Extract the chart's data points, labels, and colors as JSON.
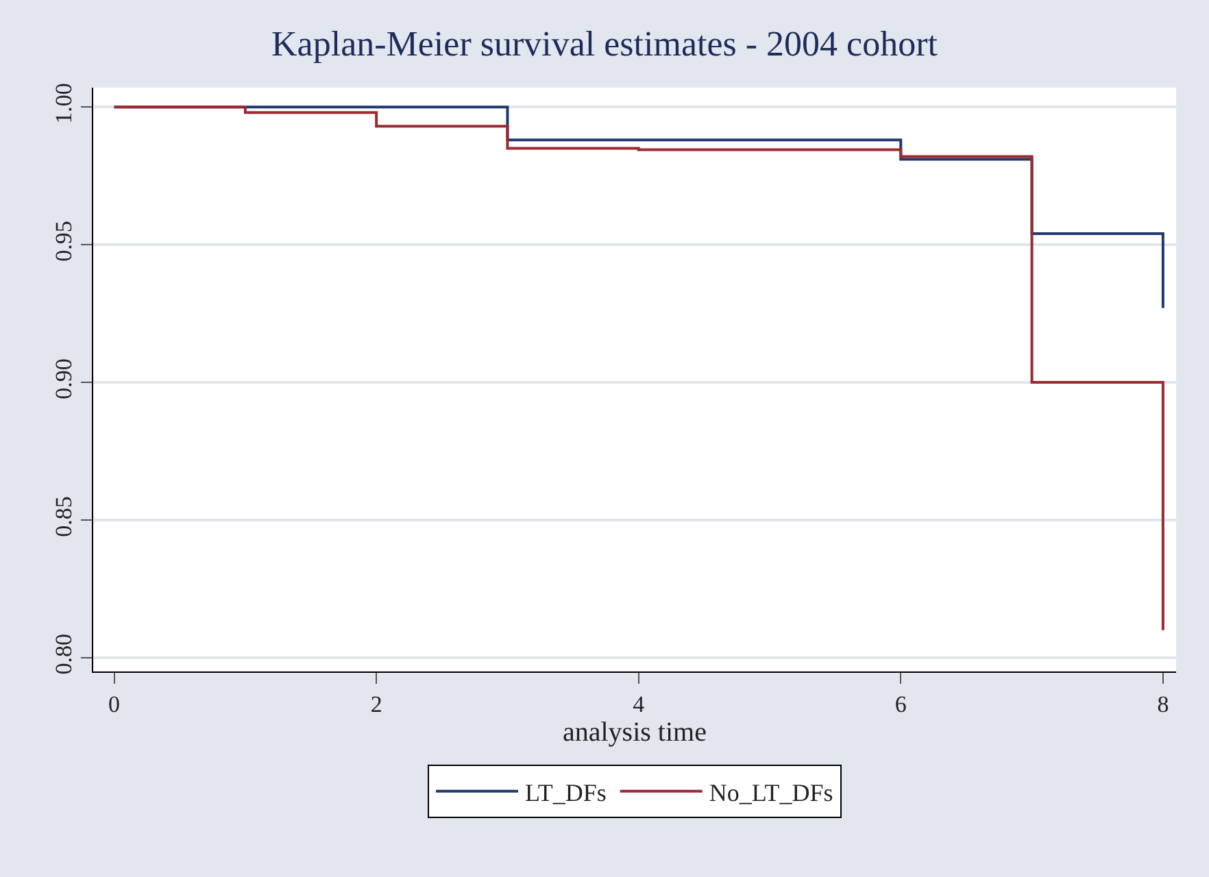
{
  "chart_data": {
    "type": "step",
    "title": "Kaplan-Meier survival estimates - 2004 cohort",
    "xlabel": "analysis time",
    "series": [
      {
        "name": "LT_DFs",
        "color": "#1f3a6e",
        "x": [
          0,
          3,
          6,
          7,
          8
        ],
        "values": [
          1.0,
          0.988,
          0.981,
          0.954,
          0.927
        ]
      },
      {
        "name": "No_LT_DFs",
        "color": "#9b2a31",
        "x": [
          0,
          1,
          2,
          3,
          4,
          6,
          7,
          8
        ],
        "values": [
          1.0,
          0.998,
          0.993,
          0.985,
          0.9845,
          0.982,
          0.9,
          0.81
        ]
      }
    ],
    "xlim": [
      -0.16,
      8.1
    ],
    "xticks": [
      0,
      2,
      4,
      6,
      8
    ],
    "ylim": [
      0.795,
      1.007
    ],
    "yticks": [
      {
        "value": 0.8,
        "label": "0.80"
      },
      {
        "value": 0.85,
        "label": "0.85"
      },
      {
        "value": 0.9,
        "label": "0.90"
      },
      {
        "value": 0.95,
        "label": "0.95"
      },
      {
        "value": 1.0,
        "label": "1.00"
      }
    ],
    "grid": "y",
    "legend": "bottom",
    "line_style": "solid"
  }
}
